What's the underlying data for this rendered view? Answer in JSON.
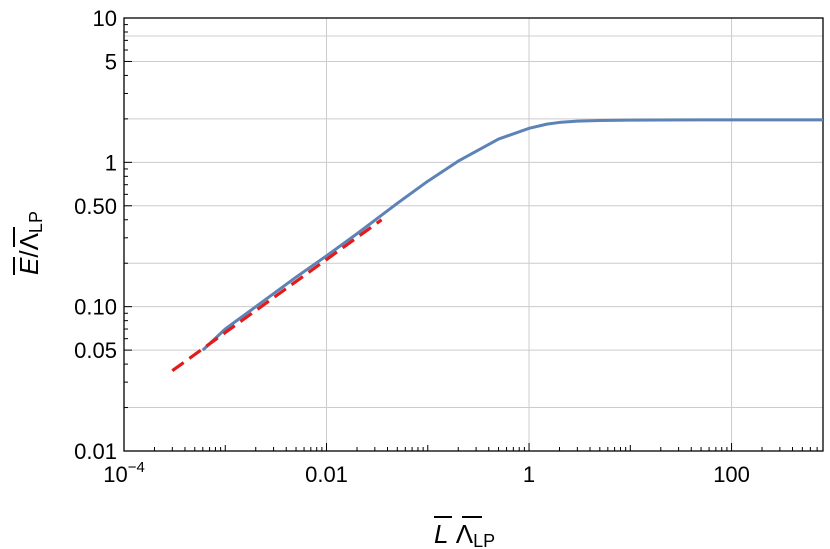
{
  "chart_data": {
    "type": "line",
    "title": "",
    "xlabel": "L̄ Λ̄LP",
    "ylabel": "Ē/Λ̄LP",
    "xscale": "log",
    "yscale": "log",
    "xlim": [
      0.0001,
      800
    ],
    "ylim": [
      0.01,
      10
    ],
    "grid": true,
    "x_ticks": [
      {
        "value": 0.0001,
        "label": "10",
        "sup": "−4"
      },
      {
        "value": 0.01,
        "label": "0.01",
        "sup": ""
      },
      {
        "value": 1,
        "label": "1",
        "sup": ""
      },
      {
        "value": 100,
        "label": "100",
        "sup": ""
      }
    ],
    "y_ticks": [
      {
        "value": 0.01,
        "label": "0.01"
      },
      {
        "value": 0.05,
        "label": "0.05"
      },
      {
        "value": 0.1,
        "label": "0.10"
      },
      {
        "value": 0.5,
        "label": "0.50"
      },
      {
        "value": 1,
        "label": "1"
      },
      {
        "value": 5,
        "label": "5"
      },
      {
        "value": 10,
        "label": "10"
      }
    ],
    "x_grid": [
      0.01,
      1,
      100
    ],
    "y_grid": [
      0.02,
      0.05,
      0.1,
      0.2,
      0.5,
      1,
      2,
      5,
      7.5
    ],
    "series": [
      {
        "color": "#5d82b5",
        "style": "solid",
        "x": [
          0.0006,
          0.001,
          0.002,
          0.005,
          0.01,
          0.02,
          0.05,
          0.1,
          0.2,
          0.5,
          1,
          1.5,
          2,
          3,
          5,
          10,
          20,
          50,
          100,
          200,
          800
        ],
        "y": [
          0.05,
          0.07,
          0.1,
          0.16,
          0.225,
          0.32,
          0.52,
          0.74,
          1.02,
          1.45,
          1.72,
          1.84,
          1.89,
          1.93,
          1.95,
          1.96,
          1.965,
          1.97,
          1.97,
          1.97,
          1.97
        ]
      },
      {
        "color": "#e31b1b",
        "style": "dashed",
        "x": [
          0.0003,
          0.035
        ],
        "y": [
          0.036,
          0.4
        ]
      }
    ]
  }
}
